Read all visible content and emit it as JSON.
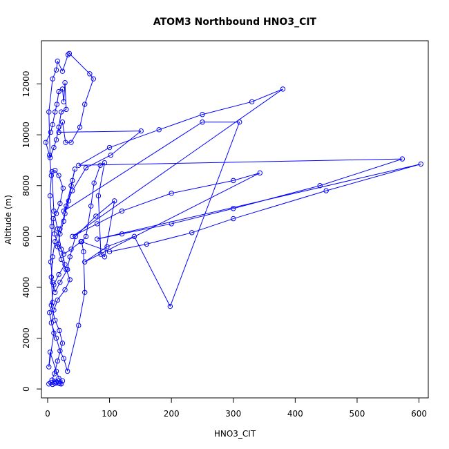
{
  "colors": {
    "series": "#0000FF",
    "text": "#000000",
    "background": "#FFFFFF"
  },
  "chart_data": {
    "type": "line",
    "title": "ATOM3 Northbound HNO3_CIT",
    "xlabel": "HNO3_CIT",
    "ylabel": "Altitude (m)",
    "xlim": [
      -10,
      615
    ],
    "ylim": [
      -350,
      13700
    ],
    "x_ticks": [
      0,
      100,
      200,
      300,
      400,
      500,
      600
    ],
    "y_ticks": [
      0,
      2000,
      4000,
      6000,
      8000,
      10000,
      12000
    ],
    "markers": "open-circle",
    "series": [
      {
        "points": [
          [
            2,
            200
          ],
          [
            5,
            250
          ],
          [
            8,
            180
          ],
          [
            12,
            220
          ],
          [
            18,
            230
          ],
          [
            22,
            200
          ],
          [
            14,
            700
          ],
          [
            4,
            1450
          ],
          [
            2,
            870
          ],
          [
            10,
            2200
          ],
          [
            3,
            3000
          ],
          [
            8,
            3400
          ],
          [
            6,
            4400
          ],
          [
            8,
            5200
          ],
          [
            12,
            5800
          ],
          [
            20,
            6300
          ],
          [
            28,
            6900
          ],
          [
            34,
            7400
          ],
          [
            40,
            8200
          ],
          [
            44,
            8650
          ],
          [
            38,
            8000
          ],
          [
            30,
            7200
          ],
          [
            26,
            6600
          ],
          [
            20,
            6100
          ],
          [
            16,
            5600
          ],
          [
            22,
            5100
          ],
          [
            30,
            4700
          ],
          [
            36,
            4300
          ],
          [
            28,
            3900
          ],
          [
            16,
            3500
          ],
          [
            10,
            3100
          ],
          [
            6,
            2600
          ],
          [
            14,
            2000
          ],
          [
            20,
            1500
          ],
          [
            26,
            1200
          ],
          [
            32,
            700
          ],
          [
            50,
            2500
          ],
          [
            60,
            3800
          ],
          [
            58,
            5400
          ],
          [
            55,
            5800
          ],
          [
            62,
            6000
          ],
          [
            70,
            7200
          ],
          [
            75,
            8100
          ],
          [
            85,
            8800
          ],
          [
            92,
            8900
          ],
          [
            82,
            7600
          ],
          [
            86,
            5300
          ],
          [
            92,
            5200
          ],
          [
            108,
            7400
          ],
          [
            78,
            6800
          ],
          [
            45,
            6000
          ],
          [
            36,
            5200
          ],
          [
            32,
            4700
          ],
          [
            20,
            4200
          ],
          [
            12,
            3800
          ],
          [
            8,
            4200
          ],
          [
            5,
            5000
          ],
          [
            7,
            6400
          ],
          [
            4,
            7600
          ],
          [
            6,
            8400
          ],
          [
            3,
            9200
          ],
          [
            -3,
            9700
          ],
          [
            5,
            10100
          ],
          [
            8,
            10400
          ],
          [
            12,
            10900
          ],
          [
            15,
            11200
          ],
          [
            18,
            11700
          ],
          [
            24,
            11800
          ],
          [
            26,
            11300
          ],
          [
            28,
            12050
          ],
          [
            30,
            11000
          ],
          [
            22,
            10900
          ],
          [
            18,
            10300
          ],
          [
            14,
            9800
          ],
          [
            10,
            9500
          ],
          [
            4,
            9100
          ],
          [
            2,
            10900
          ],
          [
            8,
            12200
          ],
          [
            14,
            12550
          ],
          [
            16,
            12900
          ],
          [
            24,
            12500
          ],
          [
            33,
            13150
          ],
          [
            35,
            13200
          ],
          [
            68,
            12400
          ],
          [
            74,
            12200
          ],
          [
            60,
            11200
          ],
          [
            52,
            10300
          ],
          [
            38,
            9700
          ],
          [
            29,
            9700
          ],
          [
            24,
            10500
          ],
          [
            18,
            10100
          ],
          [
            151,
            10150
          ],
          [
            102,
            9200
          ],
          [
            62,
            8700
          ],
          [
            40,
            7800
          ],
          [
            26,
            7000
          ],
          [
            250,
            10500
          ],
          [
            310,
            10500
          ],
          [
            198,
            3250
          ],
          [
            140,
            6000
          ],
          [
            96,
            5600
          ],
          [
            60,
            5000
          ],
          [
            343,
            8500
          ],
          [
            300,
            8200
          ],
          [
            200,
            7700
          ],
          [
            120,
            7000
          ],
          [
            80,
            6500
          ],
          [
            40,
            6000
          ],
          [
            380,
            11800
          ],
          [
            330,
            11300
          ],
          [
            250,
            10800
          ],
          [
            180,
            10200
          ],
          [
            100,
            9500
          ],
          [
            50,
            8800
          ],
          [
            573,
            9050
          ],
          [
            440,
            8000
          ],
          [
            300,
            7100
          ],
          [
            200,
            6500
          ],
          [
            120,
            6100
          ],
          [
            80,
            5900
          ],
          [
            603,
            8850
          ],
          [
            450,
            7800
          ],
          [
            300,
            6700
          ],
          [
            233,
            6150
          ],
          [
            160,
            5700
          ],
          [
            100,
            5400
          ],
          [
            54,
            5800
          ],
          [
            38,
            5500
          ],
          [
            26,
            5300
          ],
          [
            17,
            5700
          ],
          [
            11,
            6100
          ],
          [
            9,
            6700
          ],
          [
            14,
            6900
          ],
          [
            20,
            7300
          ],
          [
            25,
            7900
          ],
          [
            18,
            8400
          ],
          [
            12,
            8600
          ],
          [
            7,
            8550
          ],
          [
            10,
            7000
          ],
          [
            16,
            6300
          ],
          [
            22,
            5500
          ],
          [
            28,
            4900
          ],
          [
            18,
            4500
          ],
          [
            10,
            4100
          ],
          [
            6,
            3300
          ],
          [
            12,
            2700
          ],
          [
            19,
            2300
          ],
          [
            24,
            1800
          ],
          [
            16,
            1100
          ],
          [
            11,
            600
          ],
          [
            7,
            350
          ],
          [
            14,
            260
          ],
          [
            20,
            210
          ],
          [
            24,
            320
          ],
          [
            18,
            420
          ],
          [
            12,
            300
          ]
        ]
      }
    ]
  }
}
